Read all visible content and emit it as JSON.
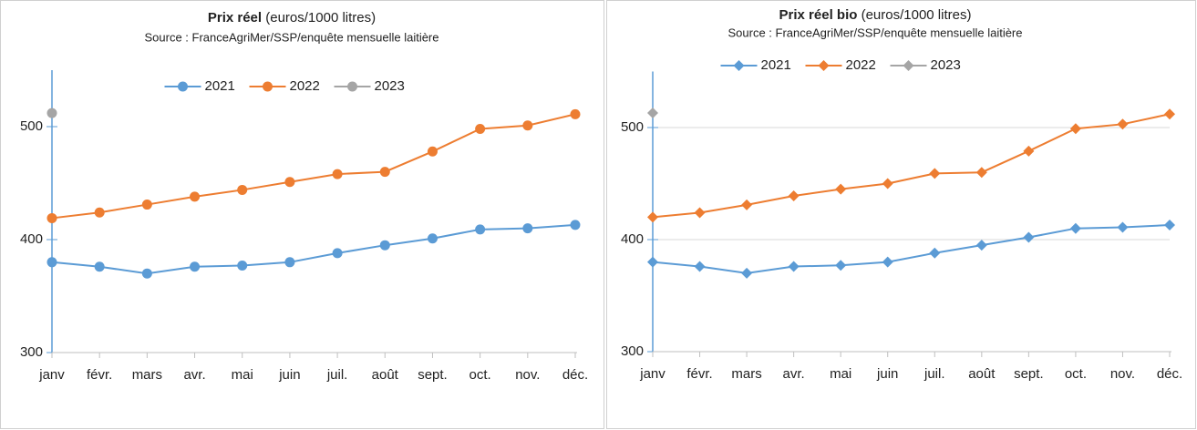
{
  "chart_data": [
    {
      "type": "line",
      "title": "Prix réel",
      "title_unit": "(euros/1000 litres)",
      "subtitle": "Source : FranceAgriMer/SSP/enquête mensuelle laitière",
      "marker": "circle",
      "grid": false,
      "categories": [
        "janv",
        "févr.",
        "mars",
        "avr.",
        "mai",
        "juin",
        "juil.",
        "août",
        "sept.",
        "oct.",
        "nov.",
        "déc."
      ],
      "ylim": [
        300,
        550
      ],
      "yticks": [
        300,
        400,
        500
      ],
      "series": [
        {
          "name": "2021",
          "color": "#5b9bd5",
          "values": [
            380,
            376,
            370,
            376,
            377,
            380,
            388,
            395,
            401,
            409,
            410,
            413
          ]
        },
        {
          "name": "2022",
          "color": "#ed7d31",
          "values": [
            419,
            424,
            431,
            438,
            444,
            451,
            458,
            460,
            478,
            498,
            501,
            511
          ]
        },
        {
          "name": "2023",
          "color": "#a5a5a5",
          "values": [
            512,
            null,
            null,
            null,
            null,
            null,
            null,
            null,
            null,
            null,
            null,
            null
          ]
        }
      ]
    },
    {
      "type": "line",
      "title": "Prix réel bio",
      "title_unit": "(euros/1000 litres)",
      "subtitle": "Source : FranceAgriMer/SSP/enquête mensuelle laitière",
      "marker": "diamond",
      "grid": true,
      "categories": [
        "janv",
        "févr.",
        "mars",
        "avr.",
        "mai",
        "juin",
        "juil.",
        "août",
        "sept.",
        "oct.",
        "nov.",
        "déc."
      ],
      "ylim": [
        300,
        550
      ],
      "yticks": [
        300,
        400,
        500
      ],
      "series": [
        {
          "name": "2021",
          "color": "#5b9bd5",
          "values": [
            380,
            376,
            370,
            376,
            377,
            380,
            388,
            395,
            402,
            410,
            411,
            413
          ]
        },
        {
          "name": "2022",
          "color": "#ed7d31",
          "values": [
            420,
            424,
            431,
            439,
            445,
            450,
            459,
            460,
            479,
            499,
            503,
            512
          ]
        },
        {
          "name": "2023",
          "color": "#a5a5a5",
          "values": [
            513,
            null,
            null,
            null,
            null,
            null,
            null,
            null,
            null,
            null,
            null,
            null
          ]
        }
      ]
    }
  ]
}
